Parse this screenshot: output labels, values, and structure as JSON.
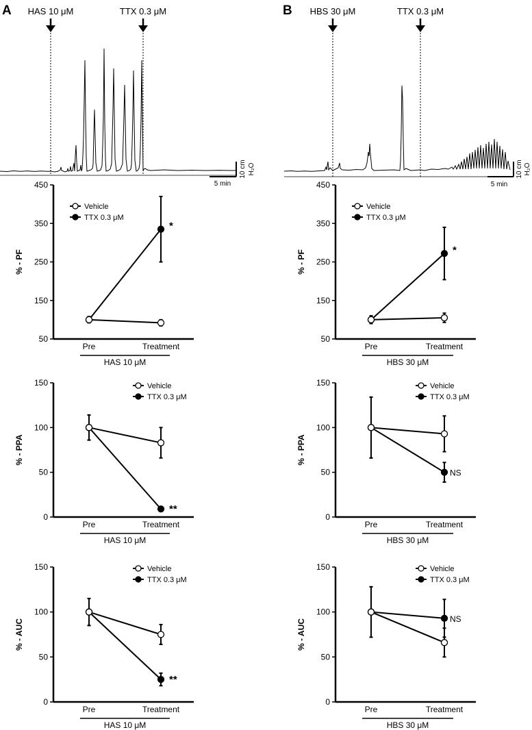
{
  "panels": [
    {
      "letter": "A",
      "trace": {
        "drug_label": "HAS 10 μM",
        "ttx_label": "TTX 0.3 μM",
        "scale_y_label": "10 cm",
        "scale_y_unit": "H₂O",
        "scale_x_label": "5 min"
      }
    },
    {
      "letter": "B",
      "trace": {
        "drug_label": "HBS 30 μM",
        "ttx_label": "TTX 0.3 μM",
        "scale_y_label": "10 cm",
        "scale_y_unit": "H₂O",
        "scale_x_label": "5 min"
      }
    }
  ],
  "chart_data": [
    {
      "type": "line",
      "panel": "A",
      "ylabel": "% - PF",
      "ylim": [
        50,
        450
      ],
      "yticks": [
        50,
        150,
        250,
        350,
        450
      ],
      "categories": [
        "Pre",
        "Treatment"
      ],
      "treatment_label": "HAS 10 μM",
      "series": [
        {
          "name": "Vehicle",
          "values": [
            100,
            92
          ],
          "err": [
            8,
            8
          ],
          "marker": "open"
        },
        {
          "name": "TTX 0.3 μM",
          "values": [
            100,
            335
          ],
          "err": [
            8,
            85
          ],
          "marker": "filled"
        }
      ],
      "annotation": "*"
    },
    {
      "type": "line",
      "panel": "A",
      "ylabel": "% - PPA",
      "ylim": [
        0,
        150
      ],
      "yticks": [
        0,
        50,
        100,
        150
      ],
      "categories": [
        "Pre",
        "Treatment"
      ],
      "treatment_label": "HAS 10 μM",
      "series": [
        {
          "name": "Vehicle",
          "values": [
            100,
            83
          ],
          "err": [
            14,
            17
          ],
          "marker": "open"
        },
        {
          "name": "TTX 0.3 μM",
          "values": [
            100,
            9
          ],
          "err": [
            14,
            1
          ],
          "marker": "filled"
        }
      ],
      "annotation": "**"
    },
    {
      "type": "line",
      "panel": "A",
      "ylabel": "% - AUC",
      "ylim": [
        0,
        150
      ],
      "yticks": [
        0,
        50,
        100,
        150
      ],
      "categories": [
        "Pre",
        "Treatment"
      ],
      "treatment_label": "HAS 10 μM",
      "series": [
        {
          "name": "Vehicle",
          "values": [
            100,
            75
          ],
          "err": [
            15,
            11
          ],
          "marker": "open"
        },
        {
          "name": "TTX 0.3 μM",
          "values": [
            100,
            25
          ],
          "err": [
            15,
            7
          ],
          "marker": "filled"
        }
      ],
      "annotation": "**"
    },
    {
      "type": "line",
      "panel": "B",
      "ylabel": "% - PF",
      "ylim": [
        50,
        450
      ],
      "yticks": [
        50,
        150,
        250,
        350,
        450
      ],
      "categories": [
        "Pre",
        "Treatment"
      ],
      "treatment_label": "HBS 30 μM",
      "series": [
        {
          "name": "Vehicle",
          "values": [
            100,
            105
          ],
          "err": [
            10,
            12
          ],
          "marker": "open"
        },
        {
          "name": "TTX 0.3 μM",
          "values": [
            100,
            272
          ],
          "err": [
            10,
            68
          ],
          "marker": "filled"
        }
      ],
      "annotation": "*"
    },
    {
      "type": "line",
      "panel": "B",
      "ylabel": "% - PPA",
      "ylim": [
        0,
        150
      ],
      "yticks": [
        0,
        50,
        100,
        150
      ],
      "categories": [
        "Pre",
        "Treatment"
      ],
      "treatment_label": "HBS 30 μM",
      "series": [
        {
          "name": "Vehicle",
          "values": [
            100,
            93
          ],
          "err": [
            34,
            20
          ],
          "marker": "open"
        },
        {
          "name": "TTX 0.3 μM",
          "values": [
            100,
            50
          ],
          "err": [
            34,
            11
          ],
          "marker": "filled"
        }
      ],
      "annotation": "NS"
    },
    {
      "type": "line",
      "panel": "B",
      "ylabel": "% - AUC",
      "ylim": [
        0,
        150
      ],
      "yticks": [
        0,
        50,
        100,
        150
      ],
      "categories": [
        "Pre",
        "Treatment"
      ],
      "treatment_label": "HBS 30 μM",
      "series": [
        {
          "name": "Vehicle",
          "values": [
            100,
            66
          ],
          "err": [
            28,
            16
          ],
          "marker": "open"
        },
        {
          "name": "TTX 0.3 μM",
          "values": [
            100,
            93
          ],
          "err": [
            28,
            21
          ],
          "marker": "filled"
        }
      ],
      "annotation": "NS"
    }
  ]
}
